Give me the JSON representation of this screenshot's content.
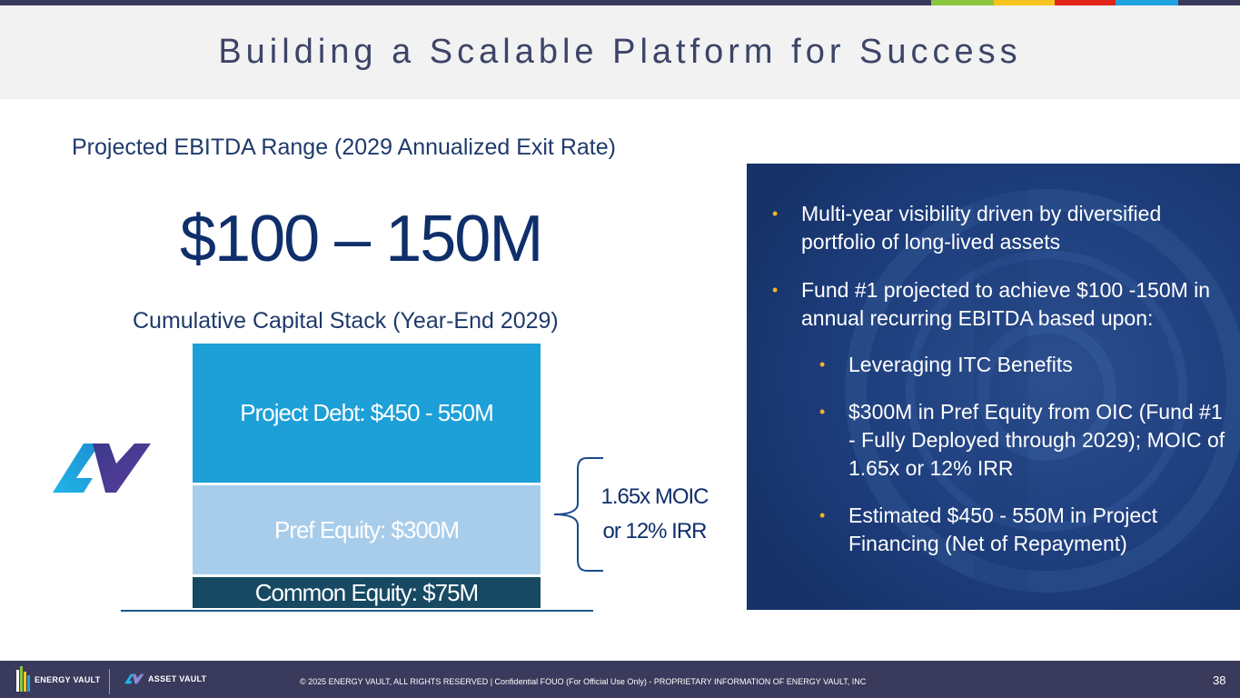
{
  "colors": {
    "accent_green": "#8cc63f",
    "accent_yellow": "#f7c41f",
    "accent_red": "#e2231a",
    "accent_blue": "#1ea2e0",
    "title_band": "#f2f2f2",
    "navy": "#3a3a5c",
    "bullet_marker": "#f5b324"
  },
  "slide": {
    "title": "Building a Scalable Platform for Success",
    "page_number": "38"
  },
  "ebitda": {
    "heading": "Projected EBITDA Range (2029 Annualized Exit Rate)",
    "value": "$100 – 150M"
  },
  "capital_stack": {
    "heading": "Cumulative Capital Stack (Year-End 2029)",
    "debt_label": "Project Debt: $450 - 550M",
    "pref_label": "Pref Equity: $300M",
    "common_label": "Common Equity: $75M",
    "moic_line1": "1.65x MOIC",
    "moic_line2": "or 12% IRR"
  },
  "panel": {
    "bullet1": "Multi-year visibility driven by diversified portfolio of long-lived assets",
    "bullet2": "Fund #1 projected to achieve $100 -150M in annual recurring EBITDA based upon:",
    "sub1": "Leveraging ITC Benefits",
    "sub2": "$300M in Pref Equity from OIC (Fund #1 - Fully Deployed through 2029); MOIC of 1.65x or 12% IRR",
    "sub3": "Estimated $450 - 550M in Project Financing (Net of Repayment)",
    "marker": "•"
  },
  "footer": {
    "ev_brand": "ENERGY VAULT",
    "av_brand": "ASSET VAULT",
    "copyright": "© 2025 ENERGY VAULT, ALL RIGHTS RESERVED | Confidential FOUO (For Official Use Only) - PROPRIETARY INFORMATION OF ENERGY VAULT, INC"
  },
  "icons": [
    "asset-vault-logo-icon",
    "energy-vault-logo-icon",
    "bracket-icon",
    "vault-door-background"
  ]
}
